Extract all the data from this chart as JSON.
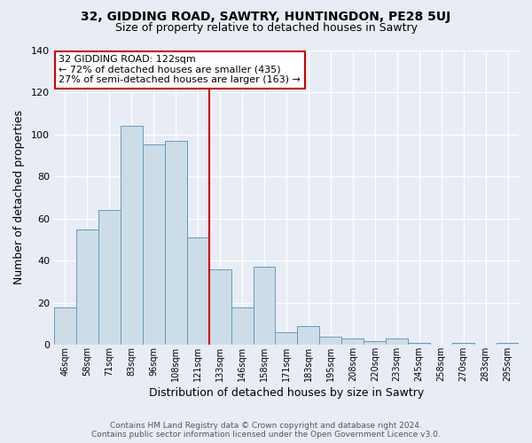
{
  "title": "32, GIDDING ROAD, SAWTRY, HUNTINGDON, PE28 5UJ",
  "subtitle": "Size of property relative to detached houses in Sawtry",
  "xlabel": "Distribution of detached houses by size in Sawtry",
  "ylabel": "Number of detached properties",
  "categories": [
    "46sqm",
    "58sqm",
    "71sqm",
    "83sqm",
    "96sqm",
    "108sqm",
    "121sqm",
    "133sqm",
    "146sqm",
    "158sqm",
    "171sqm",
    "183sqm",
    "195sqm",
    "208sqm",
    "220sqm",
    "233sqm",
    "245sqm",
    "258sqm",
    "270sqm",
    "283sqm",
    "295sqm"
  ],
  "values": [
    18,
    55,
    64,
    104,
    95,
    97,
    51,
    36,
    18,
    37,
    6,
    9,
    4,
    3,
    2,
    3,
    1,
    0,
    1,
    0,
    1
  ],
  "bar_color": "#ccdde8",
  "bar_edge_color": "#6699bb",
  "background_color": "#e8edf5",
  "vline_color": "#cc0000",
  "annotation_title": "32 GIDDING ROAD: 122sqm",
  "annotation_line1": "← 72% of detached houses are smaller (435)",
  "annotation_line2": "27% of semi-detached houses are larger (163) →",
  "annotation_box_edge": "#cc0000",
  "ylim": [
    0,
    140
  ],
  "yticks": [
    0,
    20,
    40,
    60,
    80,
    100,
    120,
    140
  ],
  "footer1": "Contains HM Land Registry data © Crown copyright and database right 2024.",
  "footer2": "Contains public sector information licensed under the Open Government Licence v3.0."
}
